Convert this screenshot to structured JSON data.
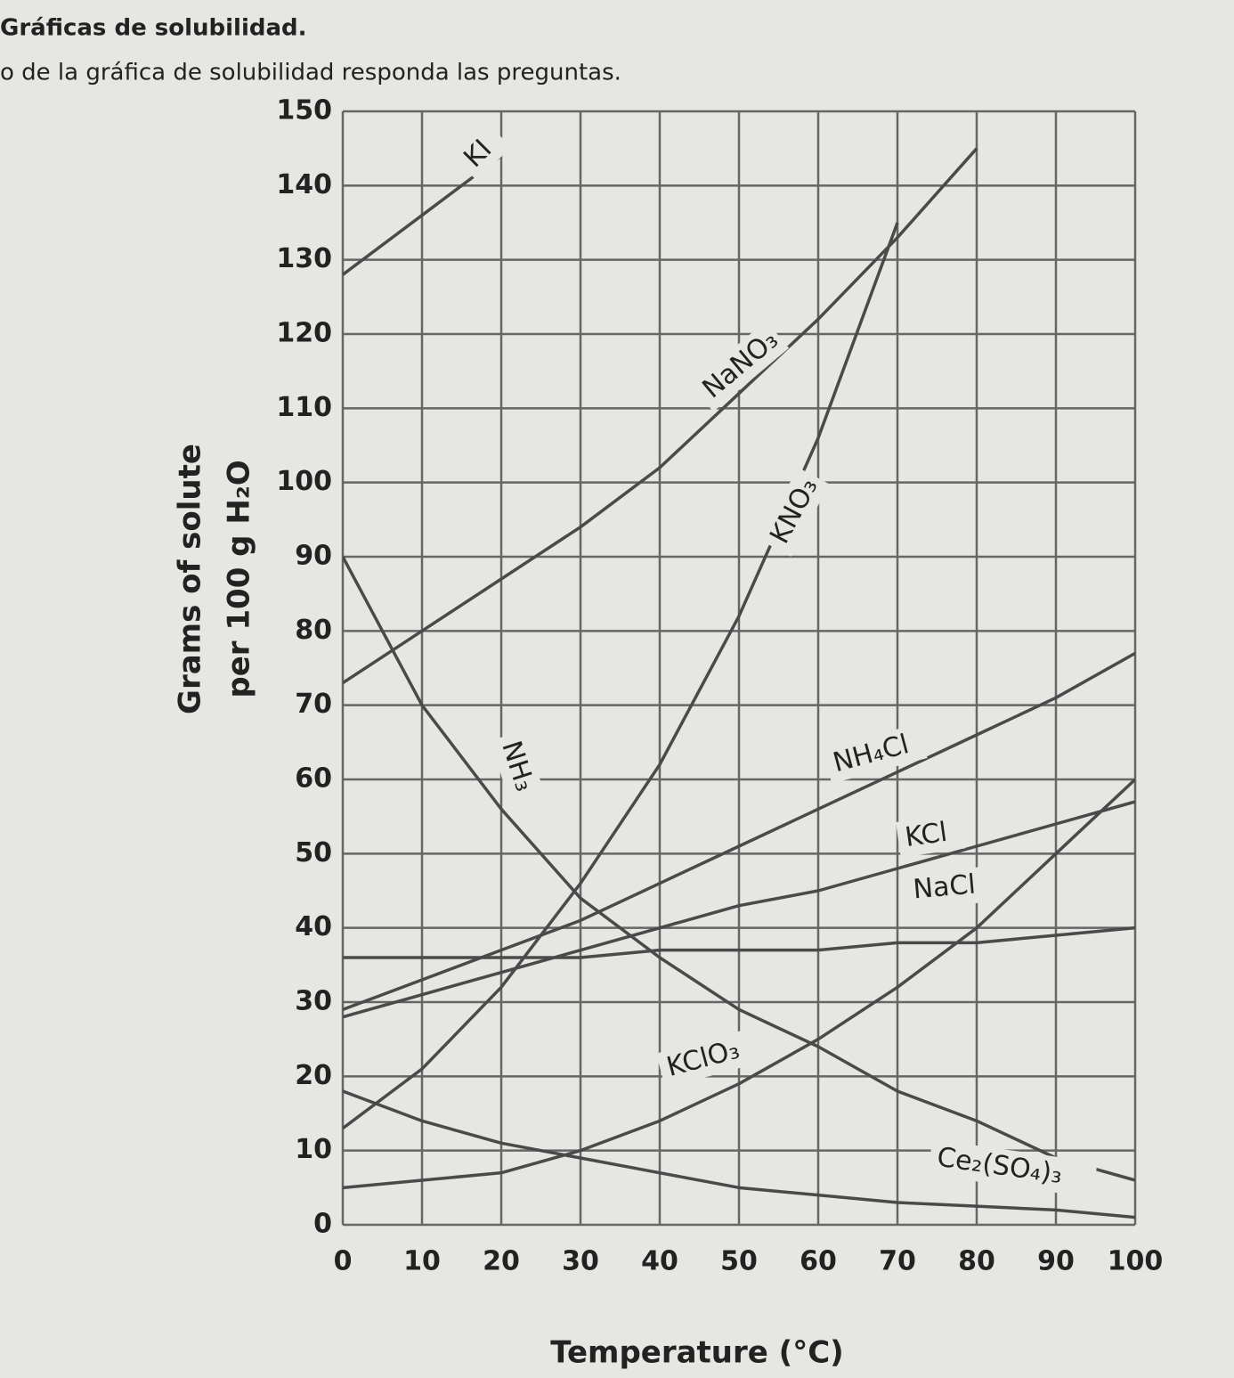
{
  "title": "Gráficas de solubilidad.",
  "subtitle": "o de la gráfica de solubilidad responda las preguntas.",
  "chart_data": {
    "type": "line",
    "xlabel": "Temperature (°C)",
    "ylabel": [
      "Grams of solute",
      "per 100 g H₂O"
    ],
    "x": [
      0,
      10,
      20,
      30,
      40,
      50,
      60,
      70,
      80,
      90,
      100
    ],
    "xlim": [
      0,
      100
    ],
    "ylim": [
      0,
      150
    ],
    "xticks": [
      0,
      10,
      20,
      30,
      40,
      50,
      60,
      70,
      80,
      90,
      100
    ],
    "yticks": [
      0,
      10,
      20,
      30,
      40,
      50,
      60,
      70,
      80,
      90,
      100,
      110,
      120,
      130,
      140,
      150
    ],
    "grid": true,
    "series": [
      {
        "name": "KI",
        "color": "#4a4a4a",
        "values": [
          128,
          136,
          144,
          null,
          null,
          null,
          null,
          null,
          null,
          null,
          null
        ]
      },
      {
        "name": "NaNO₃",
        "color": "#4a4a4a",
        "values": [
          73,
          80,
          87,
          94,
          102,
          112,
          122,
          133,
          145,
          null,
          null
        ]
      },
      {
        "name": "KNO₃",
        "color": "#4a4a4a",
        "values": [
          13,
          21,
          32,
          46,
          62,
          82,
          106,
          135,
          null,
          null,
          null
        ]
      },
      {
        "name": "NH₃",
        "color": "#4a4a4a",
        "values": [
          90,
          70,
          56,
          44,
          36,
          29,
          24,
          18,
          14,
          9,
          6
        ]
      },
      {
        "name": "NH₄Cl",
        "color": "#4a4a4a",
        "values": [
          29,
          33,
          37,
          41,
          46,
          51,
          56,
          61,
          66,
          71,
          77
        ]
      },
      {
        "name": "KCl",
        "color": "#4a4a4a",
        "values": [
          28,
          31,
          34,
          37,
          40,
          43,
          45,
          48,
          51,
          54,
          57
        ]
      },
      {
        "name": "NaCl",
        "color": "#4a4a4a",
        "values": [
          36,
          36,
          36,
          36,
          37,
          37,
          37,
          38,
          38,
          39,
          40
        ]
      },
      {
        "name": "KClO₃",
        "color": "#4a4a4a",
        "values": [
          5,
          6,
          7,
          10,
          14,
          19,
          25,
          32,
          40,
          50,
          60
        ]
      },
      {
        "name": "Ce₂(SO₄)₃",
        "color": "#4a4a4a",
        "values": [
          18,
          14,
          11,
          9,
          7,
          5,
          4,
          3,
          2.5,
          2,
          1
        ]
      }
    ]
  }
}
